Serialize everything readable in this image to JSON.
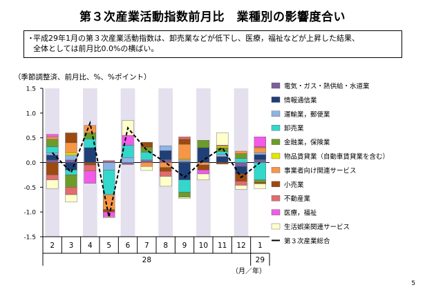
{
  "page": {
    "title": "第３次産業活動指数前月比　業種別の影響度合い",
    "note_bullet": "・",
    "note_line1": "平成29年1月の第３次産業活動指数は、卸売業などが低下し、医療，福祉などが上昇した結果、",
    "note_line2": "全体としては前月比0.0%の横ばい。",
    "unit_label": "（季節調整済、前月比、%、%ポイント）",
    "page_number": "5",
    "axis_unit_label": "（月／年）"
  },
  "chart_data": {
    "type": "bar",
    "stacked": true,
    "ylim": [
      -1.5,
      1.5
    ],
    "yticks": [
      "1.5",
      "1.0",
      "0.5",
      "0.0",
      "-0.5",
      "-1.0",
      "-1.5"
    ],
    "categories": [
      "2",
      "3",
      "4",
      "5",
      "6",
      "7",
      "8",
      "9",
      "10",
      "11",
      "12",
      "1"
    ],
    "year_groups": [
      {
        "label": "28",
        "from": 0,
        "to": 10
      },
      {
        "label": "29",
        "from": 11,
        "to": 11
      }
    ],
    "shaded_categories": [
      0,
      2,
      4,
      6,
      8,
      10
    ],
    "series": [
      {
        "name": "電気・ガス・熱供給・水道業",
        "color": "#7E5E9C",
        "values": [
          0.05,
          0.05,
          0.0,
          0.02,
          -0.04,
          0.04,
          0.06,
          0.02,
          0.0,
          0.0,
          -0.08,
          0.06
        ]
      },
      {
        "name": "情報通信業",
        "color": "#1F3F77",
        "values": [
          0.1,
          -0.15,
          0.3,
          0.0,
          0.0,
          0.0,
          0.18,
          -0.35,
          0.3,
          0.12,
          -0.15,
          0.1
        ]
      },
      {
        "name": "運輸業，郵便業",
        "color": "#8EB4E3",
        "values": [
          0.05,
          0.1,
          0.0,
          -0.15,
          0.1,
          0.02,
          0.1,
          0.03,
          0.0,
          0.05,
          0.0,
          0.04
        ]
      },
      {
        "name": "卸売業",
        "color": "#33D7CC",
        "values": [
          0.12,
          -0.1,
          0.18,
          -0.5,
          0.25,
          0.15,
          0.0,
          -0.25,
          0.0,
          0.05,
          0.08,
          -0.35
        ]
      },
      {
        "name": "金融業，保険業",
        "color": "#6D9B2A",
        "values": [
          0.15,
          -0.25,
          0.12,
          0.0,
          0.0,
          0.1,
          0.0,
          -0.1,
          0.15,
          0.08,
          0.1,
          -0.05
        ]
      },
      {
        "name": "物品賃貸業（自動車賃貸業を含む）",
        "color": "#E5E600",
        "values": [
          0.0,
          0.05,
          0.0,
          0.0,
          0.0,
          0.0,
          0.0,
          0.02,
          0.0,
          0.03,
          0.0,
          0.0
        ]
      },
      {
        "name": "事業者向け関連サービス",
        "color": "#F79646",
        "values": [
          0.05,
          0.2,
          0.15,
          -0.3,
          0.0,
          -0.08,
          -0.1,
          0.3,
          -0.05,
          0.0,
          0.05,
          0.1
        ]
      },
      {
        "name": "小売業",
        "color": "#9C4A10",
        "values": [
          -0.25,
          0.2,
          -0.05,
          -0.05,
          0.0,
          0.1,
          -0.08,
          0.1,
          -0.1,
          -0.03,
          -0.15,
          -0.03
        ]
      },
      {
        "name": "不動産業",
        "color": "#E26B6B",
        "values": [
          -0.1,
          -0.15,
          -0.12,
          0.02,
          0.0,
          0.0,
          -0.1,
          0.05,
          0.0,
          0.02,
          -0.08,
          0.02
        ]
      },
      {
        "name": "医療，福祉",
        "color": "#F25AE8",
        "values": [
          0.05,
          0.0,
          -0.25,
          -0.1,
          0.2,
          0.0,
          0.0,
          0.0,
          -0.08,
          0.0,
          0.0,
          0.2
        ]
      },
      {
        "name": "生活娯楽関連サービス",
        "color": "#FFFFCC",
        "values": [
          -0.18,
          -0.15,
          0.0,
          -0.02,
          0.3,
          -0.08,
          -0.2,
          -0.03,
          -0.12,
          0.25,
          -0.08,
          -0.1
        ]
      }
    ],
    "total_line": {
      "name": "第３次産業総合",
      "values": [
        0.2,
        -0.2,
        0.8,
        -1.1,
        0.7,
        0.25,
        0.0,
        -0.3,
        0.05,
        0.3,
        -0.3,
        0.0
      ]
    }
  }
}
